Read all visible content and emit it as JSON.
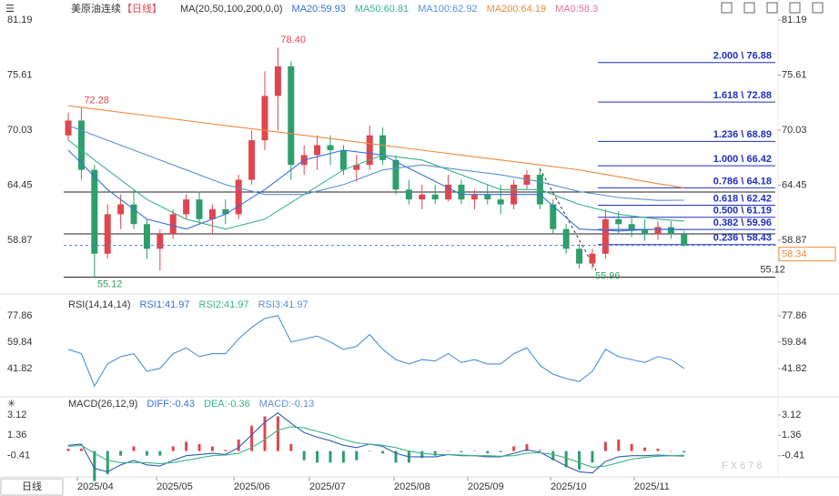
{
  "header": {
    "title": "美原油连续",
    "period": "【日线】",
    "button": "日线",
    "watermark": "FX678"
  },
  "chart_data": [
    {
      "type": "candlestick",
      "legend": [
        {
          "text": "MA(20,50,100,200,0,0)",
          "color": "#333333"
        },
        {
          "text": "MA20:59.93",
          "color": "#3670d9"
        },
        {
          "text": "MA50:60.81",
          "color": "#39b38a"
        },
        {
          "text": "MA100:62.92",
          "color": "#5b8fd6"
        },
        {
          "text": "MA200:64.19",
          "color": "#f08a3c"
        },
        {
          "text": "MA0:58.3",
          "color": "#e7739a"
        }
      ],
      "open": [
        69.5,
        71,
        66,
        57.5,
        61.5,
        62.5,
        60.5,
        58,
        59.5,
        61.5,
        63,
        61,
        62,
        61.5,
        65,
        69,
        73.5,
        76.5,
        66.5,
        67.5,
        68.5,
        68,
        66,
        66.5,
        69.5,
        67,
        64,
        63,
        63.5,
        63,
        64.5,
        63,
        63.5,
        63,
        62.5,
        64.5,
        65.5,
        62.5,
        60,
        58,
        56.5,
        57.5,
        61,
        60.5,
        60,
        59.5,
        60.2,
        59.5
      ],
      "high": [
        71.8,
        72.28,
        66.5,
        62.5,
        63.5,
        64,
        61,
        60,
        62,
        63.5,
        63.8,
        62.5,
        63,
        65.5,
        70,
        76,
        78.4,
        77,
        68.5,
        69.5,
        69.5,
        68.5,
        67.5,
        70.5,
        70.3,
        67.5,
        65,
        64.5,
        64.5,
        65.5,
        65,
        64,
        64.5,
        64.5,
        65,
        66,
        66.2,
        63,
        60.5,
        58.5,
        58,
        62,
        61.8,
        61.2,
        61,
        60.8,
        60.8,
        59.8
      ],
      "low": [
        69,
        65,
        55.12,
        57,
        60,
        60,
        57,
        55.8,
        59,
        61,
        60.5,
        59.5,
        60.5,
        61,
        64.5,
        68,
        70,
        65,
        65.5,
        66,
        66.5,
        65.5,
        64.8,
        66,
        66.5,
        63.5,
        62.5,
        62,
        62.5,
        62.8,
        62.5,
        62,
        62.5,
        61.5,
        62,
        64,
        62,
        59.5,
        57.5,
        56,
        55.96,
        57,
        59.5,
        59.2,
        58.8,
        58.9,
        59,
        58.2
      ],
      "close": [
        71,
        66,
        57.5,
        61.5,
        62.5,
        60.5,
        58,
        59.5,
        61.5,
        63,
        61,
        62,
        61.5,
        65,
        69,
        73.5,
        76.5,
        66.5,
        67.5,
        68.5,
        68,
        66,
        66.5,
        69.5,
        67,
        64,
        63,
        63.5,
        63,
        64.5,
        63,
        63.5,
        63,
        62.5,
        64.5,
        65.5,
        62.5,
        60,
        58,
        56.5,
        57.5,
        61,
        60.5,
        60,
        59.5,
        60.2,
        59.5,
        58.34
      ],
      "up_color": "#e0454f",
      "down_color": "#2e9e6b",
      "xlim": [
        -0.35,
        54.17
      ],
      "xticks": [
        {
          "value": 0.69,
          "label": "2025/04"
        },
        {
          "value": 6.74,
          "label": "2025/05"
        },
        {
          "value": 12.64,
          "label": "2025/06"
        },
        {
          "value": 18.4,
          "label": "2025/07"
        },
        {
          "value": 24.86,
          "label": "2025/08"
        },
        {
          "value": 30.49,
          "label": "2025/09"
        },
        {
          "value": 36.81,
          "label": "2025/10"
        },
        {
          "value": 43.19,
          "label": "2025/11"
        }
      ],
      "ylim": [
        53.88,
        82.3
      ],
      "yticks": [
        81.19,
        75.61,
        70.03,
        64.45,
        58.87
      ],
      "ma_x": [
        0,
        3,
        6,
        9,
        12,
        15,
        18,
        21,
        24,
        27,
        30,
        33,
        36,
        39,
        42,
        45,
        47
      ],
      "series": [
        {
          "color": "#3670d9",
          "values": [
            68,
            64,
            61,
            60,
            61.5,
            64,
            67,
            68,
            67.5,
            65.5,
            63.5,
            63.5,
            63.5,
            60,
            59.8,
            60,
            59.93
          ]
        },
        {
          "color": "#39b38a",
          "values": [
            69,
            66,
            63,
            61,
            60,
            61,
            63.5,
            66,
            67.5,
            67,
            65.5,
            64,
            64,
            62.5,
            61.5,
            61,
            60.81
          ]
        },
        {
          "color": "#5b8fd6",
          "values": [
            70.5,
            69,
            67.5,
            66,
            64.5,
            63.5,
            63.5,
            64.5,
            66,
            66.5,
            66,
            65.5,
            64.8,
            63.8,
            63.2,
            62.9,
            62.92
          ]
        },
        {
          "color": "#f08a3c",
          "values": [
            72.5,
            72,
            71.5,
            71,
            70.5,
            70,
            69.5,
            69,
            68.5,
            68,
            67.5,
            67,
            66.5,
            66,
            65.3,
            64.6,
            64.19
          ]
        }
      ],
      "fib": [
        {
          "value": 76.88,
          "label": "2.000 \\ 76.88"
        },
        {
          "value": 72.88,
          "label": "1.618 \\ 72.88"
        },
        {
          "value": 68.89,
          "label": "1.236 \\ 68.89"
        },
        {
          "value": 66.42,
          "label": "1.000 \\ 66.42"
        },
        {
          "value": 64.18,
          "label": "0.786 \\ 64.18"
        },
        {
          "value": 62.42,
          "label": "0.618 \\ 62.42"
        },
        {
          "value": 61.19,
          "label": "0.500 \\ 61.19"
        },
        {
          "value": 59.96,
          "label": "0.382 \\ 59.96"
        },
        {
          "value": 58.43,
          "label": "0.236 \\ 58.43"
        }
      ],
      "hlines": [
        63.75,
        59.51,
        55.12
      ],
      "annotations": [
        {
          "x": 16,
          "value": 78.4,
          "label": "78.40",
          "color": "#e0454f"
        },
        {
          "x": 1,
          "value": 72.28,
          "label": "72.28",
          "color": "#e0454f"
        },
        {
          "x": 2,
          "value": 55.12,
          "label": "55.12",
          "color": "#2e9e6b"
        },
        {
          "x": 40,
          "value": 55.96,
          "label": "55.96",
          "color": "#2e9e6b"
        },
        {
          "x": 52.6,
          "value": 55.12,
          "label": "55.12",
          "color": "#333333"
        }
      ],
      "last": {
        "value": 58.34,
        "label": "58.34",
        "color": "#f08a3c"
      }
    },
    {
      "type": "line",
      "legend": [
        {
          "text": "RSI(14,14,14)",
          "color": "#333333"
        },
        {
          "text": "RSI1:41.97",
          "color": "#3670d9"
        },
        {
          "text": "RSI2:41.97",
          "color": "#39b38a"
        },
        {
          "text": "RSI3:41.97",
          "color": "#5b8fd6"
        }
      ],
      "ylim": [
        25.07,
        89.66
      ],
      "yticks": [
        77.86,
        59.84,
        41.82
      ],
      "series": [
        {
          "color": "#4a90d9",
          "values": [
            55,
            52,
            30,
            45,
            50,
            52,
            40,
            42,
            52,
            56,
            50,
            52,
            52,
            62,
            70,
            76,
            78,
            60,
            62,
            64,
            60,
            55,
            57,
            65,
            55,
            48,
            45,
            48,
            47,
            52,
            46,
            48,
            45,
            45,
            52,
            56,
            44,
            38,
            35,
            33,
            40,
            55,
            50,
            48,
            46,
            50,
            48,
            41.97
          ]
        }
      ]
    },
    {
      "type": "macd",
      "legend": [
        {
          "text": "MACD(26,12,9)",
          "color": "#333333"
        },
        {
          "text": "DIFF:-0.43",
          "color": "#3670d9"
        },
        {
          "text": "DEA:-0.36",
          "color": "#39b38a"
        },
        {
          "text": "MACD:-0.13",
          "color": "#5b8fd6"
        }
      ],
      "ylim": [
        -2.08,
        4.38
      ],
      "yticks": [
        3.12,
        1.36,
        -0.41
      ],
      "series": [
        {
          "color": "#2f5fb3",
          "values": [
            0.5,
            0.6,
            -1.5,
            -1.8,
            -1.2,
            -0.8,
            -1.2,
            -1.3,
            -0.8,
            -0.4,
            -0.3,
            -0.2,
            -0.3,
            0.3,
            1.4,
            2.5,
            3.3,
            2.4,
            1.6,
            1.2,
            0.9,
            0.5,
            0.3,
            0.6,
            0.4,
            -0.2,
            -0.5,
            -0.5,
            -0.5,
            -0.3,
            -0.4,
            -0.4,
            -0.5,
            -0.5,
            -0.2,
            0.1,
            -0.1,
            -0.7,
            -1.3,
            -1.8,
            -1.9,
            -0.9,
            -0.5,
            -0.4,
            -0.4,
            -0.35,
            -0.4,
            -0.43
          ]
        },
        {
          "color": "#39b38a",
          "values": [
            0.4,
            0.5,
            -0.2,
            -0.8,
            -1,
            -1,
            -1,
            -1.1,
            -1,
            -0.8,
            -0.6,
            -0.4,
            -0.35,
            -0.2,
            0.3,
            1,
            1.8,
            2.1,
            2,
            1.7,
            1.4,
            1,
            0.7,
            0.6,
            0.5,
            0.3,
            0,
            -0.2,
            -0.3,
            -0.3,
            -0.35,
            -0.4,
            -0.4,
            -0.45,
            -0.4,
            -0.2,
            -0.15,
            -0.3,
            -0.6,
            -1,
            -1.4,
            -1.3,
            -1,
            -0.7,
            -0.55,
            -0.45,
            -0.4,
            -0.36
          ]
        }
      ],
      "histogram": [
        0.2,
        0.2,
        -2.6,
        -2,
        -0.4,
        0.4,
        -0.4,
        -0.4,
        0.4,
        0.8,
        0.6,
        0.4,
        0.1,
        1,
        2.2,
        3,
        3,
        0.6,
        -0.8,
        -1,
        -1,
        -1,
        -0.8,
        0,
        -0.2,
        -1,
        -1,
        -0.6,
        -0.4,
        0,
        -0.1,
        0,
        -0.2,
        -0.1,
        0.4,
        0.6,
        0.1,
        -0.8,
        -1.4,
        -1.6,
        -1,
        0.8,
        1,
        0.6,
        0.3,
        0.2,
        0,
        -0.13
      ]
    }
  ]
}
